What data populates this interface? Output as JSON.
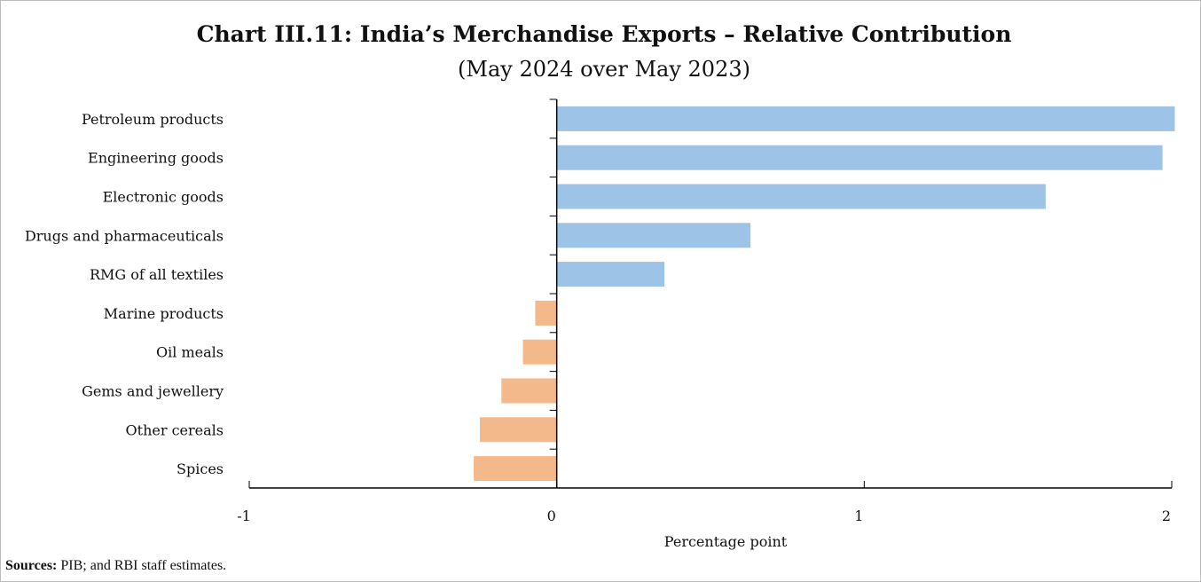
{
  "title": "Chart III.11: India’s Merchandise Exports – Relative Contribution",
  "subtitle": "(May 2024 over May 2023)",
  "source": {
    "label": "Sources:",
    "text": " PIB; and RBI staff estimates."
  },
  "chart_data": {
    "type": "bar",
    "orientation": "horizontal",
    "categories": [
      "Petroleum products",
      "Engineering goods",
      "Electronic goods",
      "Drugs and pharmaceuticals",
      "RMG of all textiles",
      "Marine products",
      "Oil meals",
      "Gems and jewellery",
      "Other cereals",
      "Spices"
    ],
    "values": [
      2.01,
      1.97,
      1.59,
      0.63,
      0.35,
      -0.07,
      -0.11,
      -0.18,
      -0.25,
      -0.27
    ],
    "xlabel": "Percentage point",
    "xlim": [
      -1,
      2
    ],
    "xticks": [
      "-1",
      "0",
      "1",
      "2"
    ],
    "colors": {
      "positive": "#9dc3e6",
      "negative": "#f4b98b"
    },
    "grid": false,
    "legend": "none"
  }
}
